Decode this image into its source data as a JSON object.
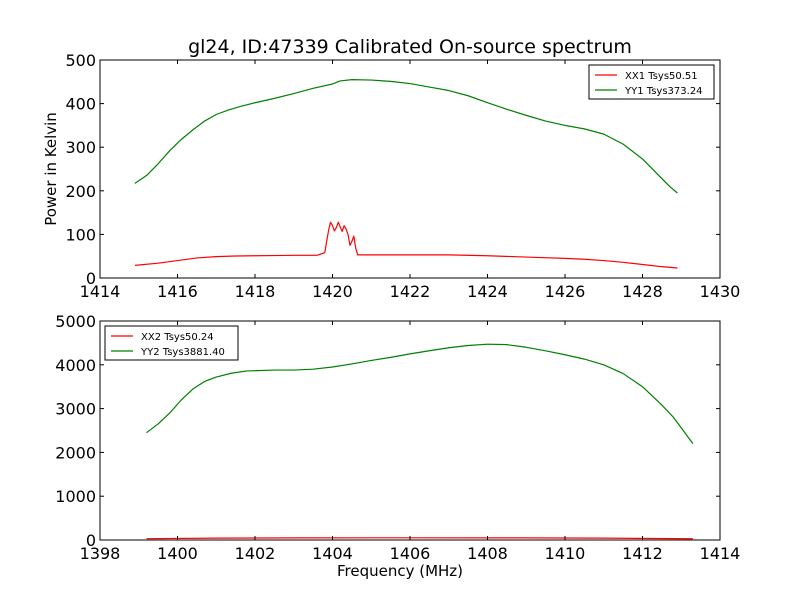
{
  "figure": {
    "title": "gl24, ID:47339 Calibrated On-source spectrum"
  },
  "chart_data": [
    {
      "type": "line",
      "title": "gl24, ID:47339 Calibrated On-source spectrum",
      "xlabel": "",
      "ylabel": "Power in Kelvin",
      "xlim": [
        1414,
        1430
      ],
      "ylim": [
        0,
        500
      ],
      "xticks": [
        "1414",
        "1416",
        "1418",
        "1420",
        "1422",
        "1424",
        "1426",
        "1428",
        "1430"
      ],
      "yticks": [
        "0",
        "100",
        "200",
        "300",
        "400",
        "500"
      ],
      "grid": false,
      "legend_position": "top-right",
      "series": [
        {
          "name": "XX1 Tsys50.51",
          "color": "#ff0000",
          "points": [
            [
              1414.9,
              29
            ],
            [
              1415.5,
              34
            ],
            [
              1416.0,
              40
            ],
            [
              1416.5,
              46
            ],
            [
              1417.0,
              49
            ],
            [
              1417.5,
              50.5
            ],
            [
              1418.0,
              51
            ],
            [
              1418.5,
              51.5
            ],
            [
              1419.0,
              52
            ],
            [
              1419.6,
              52
            ],
            [
              1419.8,
              58
            ],
            [
              1419.9,
              110
            ],
            [
              1419.95,
              128
            ],
            [
              1420.0,
              120
            ],
            [
              1420.05,
              108
            ],
            [
              1420.1,
              116
            ],
            [
              1420.15,
              128
            ],
            [
              1420.2,
              117
            ],
            [
              1420.25,
              107
            ],
            [
              1420.3,
              120
            ],
            [
              1420.35,
              112
            ],
            [
              1420.4,
              100
            ],
            [
              1420.45,
              75
            ],
            [
              1420.5,
              84
            ],
            [
              1420.55,
              96
            ],
            [
              1420.6,
              68
            ],
            [
              1420.65,
              53
            ],
            [
              1421.0,
              53
            ],
            [
              1422.0,
              53
            ],
            [
              1423.0,
              53
            ],
            [
              1424.0,
              51
            ],
            [
              1425.0,
              48
            ],
            [
              1426.0,
              45
            ],
            [
              1426.5,
              43
            ],
            [
              1427.0,
              40
            ],
            [
              1427.5,
              36
            ],
            [
              1428.0,
              31
            ],
            [
              1428.5,
              26
            ],
            [
              1428.9,
              23
            ]
          ]
        },
        {
          "name": "YY1 Tsys373.24",
          "color": "#008000",
          "points": [
            [
              1414.9,
              217
            ],
            [
              1415.2,
              235
            ],
            [
              1415.5,
              262
            ],
            [
              1415.8,
              292
            ],
            [
              1416.1,
              318
            ],
            [
              1416.4,
              340
            ],
            [
              1416.7,
              360
            ],
            [
              1417.0,
              375
            ],
            [
              1417.3,
              385
            ],
            [
              1417.6,
              393
            ],
            [
              1418.0,
              402
            ],
            [
              1418.5,
              412
            ],
            [
              1419.0,
              423
            ],
            [
              1419.5,
              435
            ],
            [
              1420.0,
              445
            ],
            [
              1420.2,
              452
            ],
            [
              1420.5,
              455
            ],
            [
              1421.0,
              454
            ],
            [
              1421.5,
              451
            ],
            [
              1422.0,
              446
            ],
            [
              1422.5,
              438
            ],
            [
              1423.0,
              430
            ],
            [
              1423.5,
              418
            ],
            [
              1424.0,
              402
            ],
            [
              1424.5,
              387
            ],
            [
              1425.0,
              373
            ],
            [
              1425.5,
              360
            ],
            [
              1426.0,
              350
            ],
            [
              1426.5,
              342
            ],
            [
              1427.0,
              330
            ],
            [
              1427.5,
              307
            ],
            [
              1428.0,
              273
            ],
            [
              1428.4,
              237
            ],
            [
              1428.7,
              210
            ],
            [
              1428.9,
              195
            ]
          ]
        }
      ]
    },
    {
      "type": "line",
      "title": "",
      "xlabel": "Frequency (MHz)",
      "ylabel": "",
      "xlim": [
        1398,
        1414
      ],
      "ylim": [
        0,
        5000
      ],
      "xticks": [
        "1398",
        "1400",
        "1402",
        "1404",
        "1406",
        "1408",
        "1410",
        "1412",
        "1414"
      ],
      "yticks": [
        "0",
        "1000",
        "2000",
        "3000",
        "4000",
        "5000"
      ],
      "grid": false,
      "legend_position": "top-left",
      "series": [
        {
          "name": "XX2 Tsys50.24",
          "color": "#ff0000",
          "points": [
            [
              1399.2,
              30
            ],
            [
              1401.0,
              42
            ],
            [
              1403.0,
              48
            ],
            [
              1406.0,
              50
            ],
            [
              1409.0,
              48
            ],
            [
              1411.0,
              42
            ],
            [
              1413.3,
              28
            ]
          ]
        },
        {
          "name": "YY2 Tsys3881.40",
          "color": "#008000",
          "points": [
            [
              1399.2,
              2450
            ],
            [
              1399.5,
              2650
            ],
            [
              1399.8,
              2900
            ],
            [
              1400.1,
              3200
            ],
            [
              1400.4,
              3450
            ],
            [
              1400.7,
              3620
            ],
            [
              1401.0,
              3720
            ],
            [
              1401.4,
              3810
            ],
            [
              1401.8,
              3860
            ],
            [
              1402.5,
              3880
            ],
            [
              1403.0,
              3880
            ],
            [
              1403.5,
              3900
            ],
            [
              1404.0,
              3950
            ],
            [
              1404.5,
              4020
            ],
            [
              1405.0,
              4100
            ],
            [
              1405.5,
              4170
            ],
            [
              1406.0,
              4250
            ],
            [
              1406.5,
              4320
            ],
            [
              1407.0,
              4390
            ],
            [
              1407.5,
              4440
            ],
            [
              1408.0,
              4470
            ],
            [
              1408.5,
              4460
            ],
            [
              1409.0,
              4400
            ],
            [
              1409.5,
              4320
            ],
            [
              1410.0,
              4230
            ],
            [
              1410.5,
              4130
            ],
            [
              1411.0,
              4000
            ],
            [
              1411.5,
              3800
            ],
            [
              1412.0,
              3500
            ],
            [
              1412.5,
              3080
            ],
            [
              1412.8,
              2800
            ],
            [
              1413.0,
              2560
            ],
            [
              1413.3,
              2200
            ]
          ]
        }
      ]
    }
  ]
}
